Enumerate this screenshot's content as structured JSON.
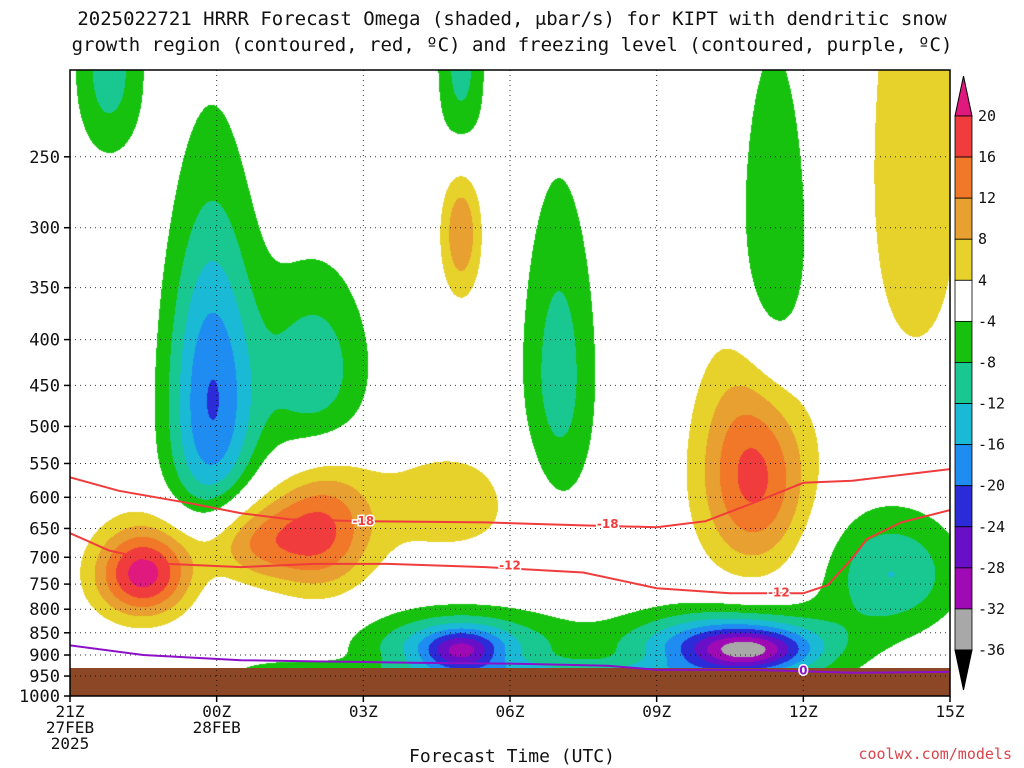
{
  "title": {
    "line1": "2025022721 HRRR Forecast Omega (shaded, μbar/s) for KIPT with dendritic snow",
    "line2": "growth region (contoured, red, ºC) and freezing level (contoured, purple, ºC)"
  },
  "credit": "coolwx.com/models",
  "chart_data": {
    "type": "heatmap",
    "title": "2025022721 HRRR Forecast Omega (shaded, μbar/s) for KIPT with dendritic snow growth region (contoured, red, ºC) and freezing level (contoured, purple, ºC)",
    "xlabel": "Forecast Time (UTC)",
    "ylabel": "",
    "x_ticks": [
      {
        "hour": 0,
        "lines": [
          "21Z",
          "27FEB",
          "2025"
        ]
      },
      {
        "hour": 3,
        "lines": [
          "00Z",
          "28FEB"
        ]
      },
      {
        "hour": 6,
        "lines": [
          "03Z"
        ]
      },
      {
        "hour": 9,
        "lines": [
          "06Z"
        ]
      },
      {
        "hour": 12,
        "lines": [
          "09Z"
        ]
      },
      {
        "hour": 15,
        "lines": [
          "12Z"
        ]
      },
      {
        "hour": 18,
        "lines": [
          "15Z"
        ]
      }
    ],
    "xlim": [
      0,
      18
    ],
    "y_ticks": [
      250,
      300,
      350,
      400,
      450,
      500,
      550,
      600,
      650,
      700,
      750,
      800,
      850,
      900,
      950,
      1000
    ],
    "ylim": [
      1000,
      200
    ],
    "y_scale": "log-pressure",
    "grid": true,
    "colorbar": {
      "labels": [
        "20",
        "16",
        "12",
        "8",
        "4",
        "-4",
        "-8",
        "-12",
        "-16",
        "-20",
        "-24",
        "-28",
        "-32",
        "-36"
      ],
      "colors": [
        "#e0197e",
        "#f03c3c",
        "#f07828",
        "#e8a030",
        "#e6d22a",
        "#ffffff",
        "#17c20f",
        "#19c890",
        "#1ab9d6",
        "#1e8cf0",
        "#2b2bd8",
        "#6a0fc8",
        "#a00ab4",
        "#a8a8a8",
        "#000000"
      ],
      "levels": [
        24,
        20,
        16,
        12,
        8,
        4,
        -4,
        -8,
        -12,
        -16,
        -20,
        -24,
        -28,
        -32,
        -36
      ]
    },
    "ground_color": "#8b4726",
    "omega_blobs": [
      {
        "t": 0.8,
        "p": 200,
        "st": 0.5,
        "sp": 35,
        "a": -10
      },
      {
        "t": 2.9,
        "p": 470,
        "st": 0.65,
        "sp": 140,
        "a": -20
      },
      {
        "t": 5.0,
        "p": 440,
        "st": 0.8,
        "sp": 80,
        "a": -11
      },
      {
        "t": 8.0,
        "p": 200,
        "st": 0.35,
        "sp": 45,
        "a": -10
      },
      {
        "t": 8.0,
        "p": 300,
        "st": 0.3,
        "sp": 40,
        "a": 12
      },
      {
        "t": 10.0,
        "p": 440,
        "st": 0.55,
        "sp": 130,
        "a": -10
      },
      {
        "t": 14.4,
        "p": 330,
        "st": 0.55,
        "sp": 110,
        "a": -9
      },
      {
        "t": 17.3,
        "p": 260,
        "st": 0.8,
        "sp": 130,
        "a": 7
      },
      {
        "t": 1.5,
        "p": 730,
        "st": 0.7,
        "sp": 60,
        "a": 22
      },
      {
        "t": 3.7,
        "p": 670,
        "st": 0.9,
        "sp": 55,
        "a": 14
      },
      {
        "t": 5.2,
        "p": 650,
        "st": 0.7,
        "sp": 80,
        "a": 14
      },
      {
        "t": 7.7,
        "p": 610,
        "st": 1.3,
        "sp": 70,
        "a": 6
      },
      {
        "t": 14.0,
        "p": 560,
        "st": 0.8,
        "sp": 110,
        "a": 18
      },
      {
        "t": 8.0,
        "p": 880,
        "st": 1.4,
        "sp": 55,
        "a": -16
      },
      {
        "t": 8.0,
        "p": 890,
        "st": 0.5,
        "sp": 30,
        "a": -14
      },
      {
        "t": 13.5,
        "p": 880,
        "st": 1.5,
        "sp": 55,
        "a": -22
      },
      {
        "t": 13.9,
        "p": 890,
        "st": 0.75,
        "sp": 30,
        "a": -14
      },
      {
        "t": 16.8,
        "p": 730,
        "st": 1.0,
        "sp": 80,
        "a": -12
      },
      {
        "t": 4.5,
        "p": 940,
        "st": 0.8,
        "sp": 18,
        "a": -8
      },
      {
        "t": 10.2,
        "p": 940,
        "st": 2.5,
        "sp": 20,
        "a": -8
      }
    ],
    "series": [
      {
        "name": "-18",
        "color": "#f03c3c",
        "points": [
          [
            0,
            570
          ],
          [
            1.0,
            590
          ],
          [
            2.5,
            610
          ],
          [
            3.5,
            625
          ],
          [
            4.5,
            635
          ],
          [
            6.0,
            638
          ],
          [
            8.5,
            640
          ],
          [
            10.5,
            645
          ],
          [
            12.0,
            648
          ],
          [
            13.0,
            638
          ],
          [
            14.0,
            608
          ],
          [
            15.0,
            578
          ],
          [
            16.0,
            575
          ],
          [
            18.0,
            558
          ]
        ]
      },
      {
        "name": "-12",
        "color": "#f03c3c",
        "points": [
          [
            0,
            658
          ],
          [
            0.8,
            688
          ],
          [
            2.0,
            712
          ],
          [
            3.5,
            718
          ],
          [
            5.0,
            712
          ],
          [
            6.5,
            712
          ],
          [
            8.5,
            718
          ],
          [
            10.5,
            728
          ],
          [
            12.0,
            758
          ],
          [
            13.5,
            768
          ],
          [
            15.0,
            768
          ],
          [
            15.5,
            752
          ],
          [
            16.0,
            702
          ],
          [
            16.3,
            668
          ],
          [
            17.0,
            640
          ],
          [
            18.0,
            620
          ]
        ]
      },
      {
        "name": "0",
        "color": "#8b10c8",
        "points": [
          [
            0,
            878
          ],
          [
            1.5,
            900
          ],
          [
            3.5,
            912
          ],
          [
            5.0,
            915
          ],
          [
            7.0,
            918
          ],
          [
            9.0,
            920
          ],
          [
            11.0,
            925
          ],
          [
            12.0,
            935
          ],
          [
            14.0,
            935
          ],
          [
            16.0,
            942
          ],
          [
            18.0,
            940
          ]
        ]
      }
    ],
    "contour_labels": [
      {
        "text": "-18",
        "t": 6.0,
        "p": 638
      },
      {
        "text": "-18",
        "t": 11.0,
        "p": 643
      },
      {
        "text": "-12",
        "t": 9.0,
        "p": 715
      },
      {
        "text": "-12",
        "t": 14.5,
        "p": 766
      },
      {
        "text": "0",
        "t": 15.0,
        "p": 936
      }
    ]
  }
}
